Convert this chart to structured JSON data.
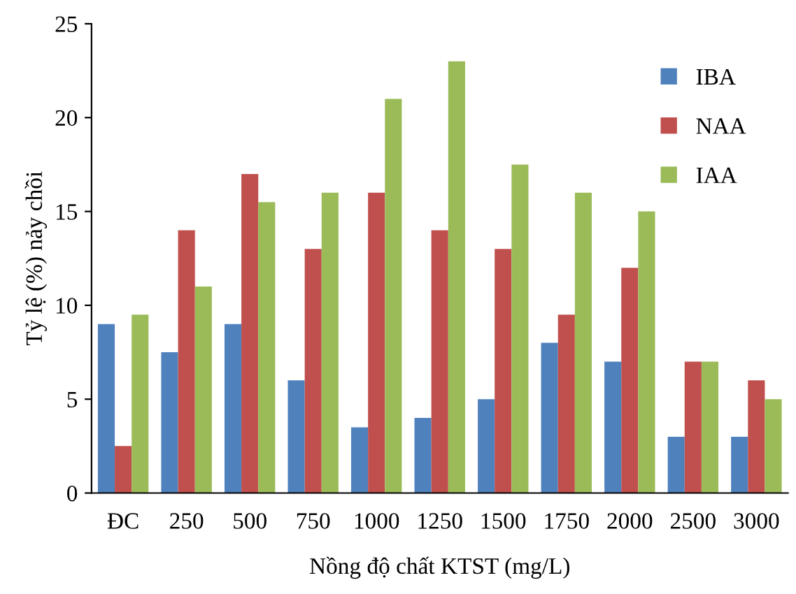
{
  "chart_data": {
    "type": "bar",
    "xlabel": "Nồng độ chất KTST (mg/L)",
    "ylabel": "Tỷ lệ (%) nảy chồi",
    "categories": [
      "ĐC",
      "250",
      "500",
      "750",
      "1000",
      "1250",
      "1500",
      "1750",
      "2000",
      "2500",
      "3000"
    ],
    "series": [
      {
        "name": "IBA",
        "color": "#4f81bd",
        "values": [
          9,
          7.5,
          9,
          6,
          3.5,
          4,
          5,
          8,
          7,
          3,
          3
        ]
      },
      {
        "name": "NAA",
        "color": "#c0504d",
        "values": [
          2.5,
          14,
          17,
          13,
          16,
          14,
          13,
          9.5,
          12,
          7,
          6
        ]
      },
      {
        "name": "IAA",
        "color": "#9bbb59",
        "values": [
          9.5,
          11,
          15.5,
          16,
          21,
          23,
          17.5,
          16,
          15,
          7,
          5
        ]
      }
    ],
    "ylim": [
      0,
      25
    ],
    "yticks": [
      0,
      5,
      10,
      15,
      20,
      25
    ],
    "grid": false,
    "legend": "top right"
  }
}
